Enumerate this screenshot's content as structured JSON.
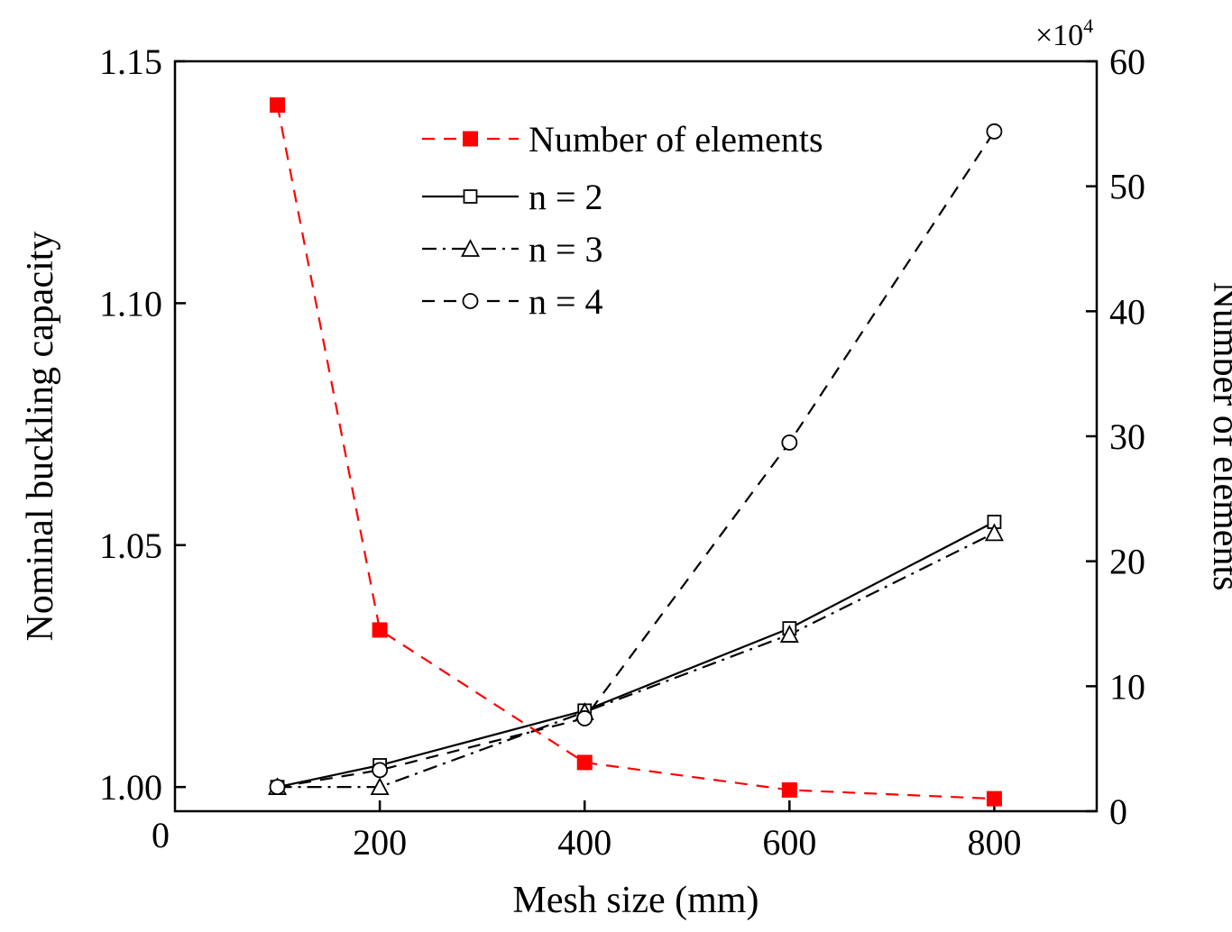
{
  "chart_data": {
    "type": "line",
    "xlabel": "Mesh size (mm)",
    "ylabel_left": "Nominal buckling capacity",
    "ylabel_right": "Number of elements",
    "right_axis_multiplier": "×10",
    "right_axis_exponent": "4",
    "xlim": [
      0,
      900
    ],
    "ylim_left": [
      0.995,
      1.15
    ],
    "ylim_right": [
      0,
      60
    ],
    "x_ticks": [
      200,
      400,
      600,
      800
    ],
    "x_tick_labels": [
      "200",
      "400",
      "600",
      "800"
    ],
    "x_zero_label": "0",
    "y_left_ticks": [
      1.0,
      1.05,
      1.1,
      1.15
    ],
    "y_left_tick_labels": [
      "1.00",
      "1.05",
      "1.10",
      "1.15"
    ],
    "y_right_ticks": [
      0,
      10,
      20,
      30,
      40,
      50,
      60
    ],
    "y_right_tick_labels": [
      "0",
      "10",
      "20",
      "30",
      "40",
      "50",
      "60"
    ],
    "series": [
      {
        "name": "Number of elements",
        "axis": "right",
        "color": "#ff0000",
        "line": "dashed",
        "marker": "filled-square",
        "x": [
          100,
          200,
          400,
          600,
          800
        ],
        "values": [
          56.5,
          14.5,
          3.9,
          1.7,
          1.0
        ]
      },
      {
        "name": "n = 2",
        "axis": "left",
        "color": "#000000",
        "line": "solid",
        "marker": "open-square",
        "x": [
          100,
          200,
          400,
          600,
          800
        ],
        "values": [
          1.0,
          1.0045,
          1.0158,
          1.0328,
          1.0548
        ]
      },
      {
        "name": "n = 3",
        "axis": "left",
        "color": "#000000",
        "line": "dash-dot",
        "marker": "open-triangle",
        "x": [
          100,
          200,
          400,
          600,
          800
        ],
        "values": [
          1.0,
          1.0,
          1.0155,
          1.0315,
          1.0525
        ]
      },
      {
        "name": "n = 4",
        "axis": "left",
        "color": "#000000",
        "line": "dashed",
        "marker": "open-circle",
        "x": [
          100,
          200,
          400,
          600,
          800
        ],
        "values": [
          1.0,
          1.0035,
          1.0142,
          1.0712,
          1.1355
        ]
      }
    ],
    "legend_position": "top-center"
  }
}
